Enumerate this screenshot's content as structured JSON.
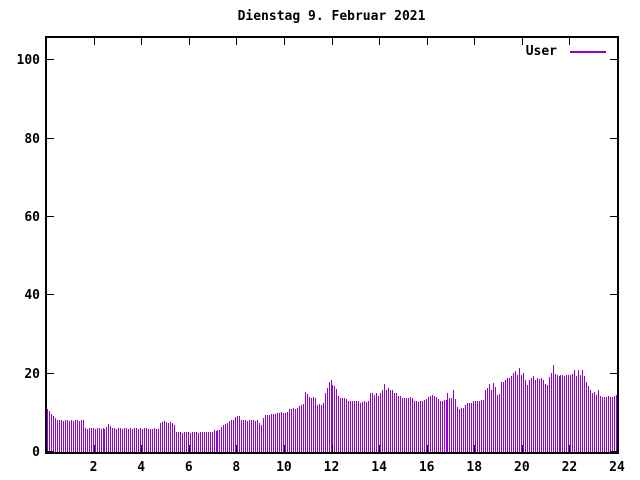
{
  "window": {
    "background": "#ffffff",
    "foreground": "#000000"
  },
  "chart_data": {
    "type": "bar",
    "title": "Dienstag 9. Februar 2021",
    "xlabel": "",
    "ylabel": "",
    "x_unit": "hour of day",
    "sample_interval_minutes": 5,
    "xlim": [
      0,
      24
    ],
    "ylim": [
      0,
      106
    ],
    "grid": false,
    "legend_position": "top-right-inside",
    "x_ticks": [
      2,
      4,
      6,
      8,
      10,
      12,
      14,
      16,
      18,
      20,
      22,
      24
    ],
    "x_tick_labels": [
      "2",
      "4",
      "6",
      "8",
      "10",
      "12",
      "14",
      "16",
      "18",
      "20",
      "22",
      "24"
    ],
    "y_ticks": [
      0,
      20,
      40,
      60,
      80,
      100
    ],
    "y_tick_labels": [
      "0",
      "20",
      "40",
      "60",
      "80",
      "100"
    ],
    "axis_color": "#000000",
    "series": [
      {
        "name": "User",
        "color": "#9400d3",
        "style": "impulses",
        "values": [
          11.0,
          10.5,
          9.8,
          9.2,
          8.6,
          8.2,
          8.1,
          8.2,
          8.0,
          8.2,
          8.1,
          8.0,
          8.1,
          8.0,
          8.2,
          8.1,
          8.0,
          8.1,
          8.2,
          6.1,
          6.0,
          6.1,
          6.2,
          6.1,
          6.0,
          6.1,
          6.2,
          6.0,
          6.1,
          6.0,
          6.3,
          7.2,
          6.7,
          6.2,
          6.1,
          6.0,
          6.2,
          6.1,
          6.0,
          6.1,
          6.2,
          6.0,
          6.1,
          6.0,
          6.2,
          6.1,
          6.0,
          6.1,
          6.0,
          6.2,
          6.1,
          6.0,
          5.9,
          6.0,
          6.1,
          5.9,
          6.0,
          7.5,
          7.6,
          7.8,
          7.7,
          7.5,
          7.6,
          7.4,
          6.9,
          5.2,
          5.0,
          5.1,
          4.9,
          5.0,
          5.1,
          5.0,
          4.9,
          5.0,
          5.1,
          5.0,
          4.9,
          5.0,
          5.1,
          5.2,
          5.0,
          5.1,
          5.0,
          5.2,
          5.5,
          5.4,
          5.6,
          5.5,
          6.5,
          7.0,
          7.1,
          7.3,
          8.0,
          8.2,
          8.1,
          9.0,
          9.3,
          9.1,
          8.2,
          8.1,
          8.2,
          8.0,
          8.1,
          8.2,
          8.1,
          8.0,
          8.2,
          7.4,
          7.0,
          8.8,
          9.5,
          9.4,
          9.5,
          9.6,
          9.8,
          9.7,
          10.0,
          9.9,
          10.1,
          10.0,
          10.0,
          10.1,
          11.0,
          11.1,
          11.2,
          11.0,
          11.2,
          11.8,
          12.0,
          12.3,
          15.2,
          14.9,
          14.0,
          13.8,
          14.0,
          13.9,
          12.1,
          12.2,
          12.1,
          12.6,
          15.0,
          16.3,
          17.8,
          18.3,
          17.2,
          16.9,
          16.1,
          14.2,
          13.8,
          13.8,
          13.8,
          13.5,
          12.9,
          13.0,
          12.9,
          13.0,
          13.0,
          12.9,
          12.5,
          12.7,
          12.9,
          12.8,
          12.9,
          15.0,
          15.0,
          14.6,
          15.0,
          14.4,
          15.0,
          15.9,
          17.4,
          15.9,
          16.3,
          15.9,
          15.9,
          15.0,
          15.0,
          14.2,
          14.2,
          13.9,
          13.8,
          13.9,
          13.8,
          14.0,
          13.8,
          12.9,
          13.0,
          12.8,
          12.9,
          13.0,
          13.3,
          13.5,
          14.0,
          14.2,
          14.6,
          14.2,
          14.0,
          13.5,
          13.0,
          12.9,
          13.3,
          13.3,
          15.0,
          13.8,
          13.8,
          15.9,
          13.5,
          11.6,
          10.9,
          11.2,
          11.2,
          12.1,
          12.5,
          12.5,
          12.5,
          12.9,
          12.9,
          13.1,
          13.0,
          13.3,
          13.2,
          15.9,
          16.3,
          17.4,
          15.9,
          17.6,
          16.6,
          14.6,
          14.8,
          17.8,
          18.0,
          18.3,
          18.9,
          18.9,
          19.5,
          20.2,
          20.6,
          19.7,
          21.5,
          19.7,
          20.2,
          18.5,
          17.2,
          18.5,
          18.9,
          19.5,
          18.5,
          18.9,
          18.6,
          18.9,
          18.3,
          17.4,
          17.2,
          19.1,
          20.2,
          22.3,
          20.0,
          19.7,
          19.5,
          19.7,
          19.7,
          19.5,
          19.7,
          19.7,
          19.7,
          20.0,
          21.0,
          19.3,
          21.0,
          19.7,
          21.0,
          19.3,
          18.0,
          16.8,
          15.9,
          15.0,
          15.2,
          14.6,
          15.9,
          14.2,
          14.0,
          14.1,
          14.0,
          14.2,
          14.1,
          14.0,
          14.2,
          14.6
        ]
      }
    ]
  },
  "legend": {
    "label": "User"
  }
}
